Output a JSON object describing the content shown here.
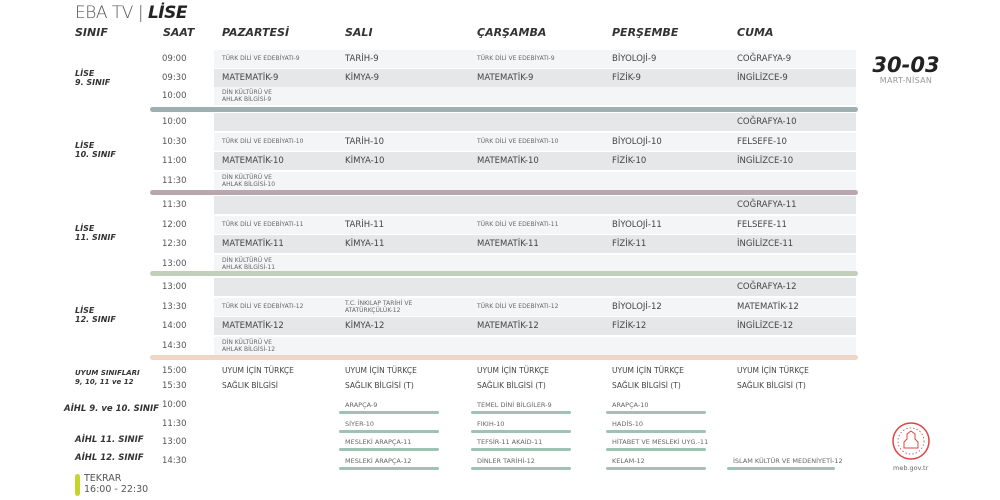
{
  "header": {
    "brand": "EBA TV |",
    "title": "LİSE"
  },
  "columns": {
    "class": "SINIF",
    "time": "SAAT",
    "days": [
      "PAZARTESİ",
      "SALI",
      "ÇARŞAMBA",
      "PERŞEMBE",
      "CUMA"
    ]
  },
  "date": {
    "day": "30-03",
    "month": "MART-NİSAN"
  },
  "colors": {
    "sep9": "#9fb0b3",
    "sep10": "#b9a7ae",
    "sep11": "#c2d0bb",
    "sep12": "#f1d6c7",
    "aihl_underline": "#9cc3b3",
    "tekrar_bar": "#c8d42e"
  },
  "blocks": [
    {
      "label": "LİSE\n9. SINIF",
      "rows": [
        {
          "time": "09:00",
          "cells": [
            "TÜRK DİLİ VE EDEBİYATI-9",
            "TARİH-9",
            "TÜRK DİLİ VE EDEBİYATI-9",
            "BİYOLOJİ-9",
            "COĞRAFYA-9"
          ]
        },
        {
          "time": "09:30",
          "cells": [
            "MATEMATİK-9",
            "KİMYA-9",
            "MATEMATİK-9",
            "FİZİK-9",
            "İNGİLİZCE-9"
          ]
        },
        {
          "time": "10:00",
          "cells": [
            "DİN KÜLTÜRÜ VE\nAHLAK BİLGİSİ-9",
            "",
            "",
            "",
            ""
          ]
        }
      ]
    },
    {
      "label": "LİSE\n10. SINIF",
      "rows": [
        {
          "time": "10:00",
          "cells": [
            "",
            "",
            "",
            "",
            "COĞRAFYA-10"
          ]
        },
        {
          "time": "10:30",
          "cells": [
            "TÜRK DİLİ VE EDEBİYATI-10",
            "TARİH-10",
            "TÜRK DİLİ VE EDEBİYATI-10",
            "BİYOLOJİ-10",
            "FELSEFE-10"
          ]
        },
        {
          "time": "11:00",
          "cells": [
            "MATEMATİK-10",
            "KİMYA-10",
            "MATEMATİK-10",
            "FİZİK-10",
            "İNGİLİZCE-10"
          ]
        },
        {
          "time": "11:30",
          "cells": [
            "DİN KÜLTÜRÜ VE\nAHLAK BİLGİSİ-10",
            "",
            "",
            "",
            ""
          ]
        }
      ]
    },
    {
      "label": "LİSE\n11. SINIF",
      "rows": [
        {
          "time": "11:30",
          "cells": [
            "",
            "",
            "",
            "",
            "COĞRAFYA-11"
          ]
        },
        {
          "time": "12:00",
          "cells": [
            "TÜRK DİLİ VE EDEBİYATI-11",
            "TARİH-11",
            "TÜRK DİLİ VE EDEBİYATI-11",
            "BİYOLOJİ-11",
            "FELSEFE-11"
          ]
        },
        {
          "time": "12:30",
          "cells": [
            "MATEMATİK-11",
            "KİMYA-11",
            "MATEMATİK-11",
            "FİZİK-11",
            "İNGİLİZCE-11"
          ]
        },
        {
          "time": "13:00",
          "cells": [
            "DİN KÜLTÜRÜ VE\nAHLAK BİLGİSİ-11",
            "",
            "",
            "",
            ""
          ]
        }
      ]
    },
    {
      "label": "LİSE\n12. SINIF",
      "rows": [
        {
          "time": "13:00",
          "cells": [
            "",
            "",
            "",
            "",
            "COĞRAFYA-12"
          ]
        },
        {
          "time": "13:30",
          "cells": [
            "TÜRK DİLİ VE EDEBİYATI-12",
            "T.C. İNKILAP TARİHİ VE\nATATÜRKÇÜLÜK-12",
            "TÜRK DİLİ VE EDEBİYATI-12",
            "BİYOLOJİ-12",
            "MATEMATİK-12"
          ]
        },
        {
          "time": "14:00",
          "cells": [
            "MATEMATİK-12",
            "KİMYA-12",
            "MATEMATİK-12",
            "FİZİK-12",
            "İNGİLİZCE-12"
          ]
        },
        {
          "time": "14:30",
          "cells": [
            "DİN KÜLTÜRÜ VE\nAHLAK BİLGİSİ-12",
            "",
            "",
            "",
            ""
          ]
        }
      ]
    }
  ],
  "uyum": {
    "label": "UYUM SINIFLARI\n9, 10, 11 ve 12",
    "rows": [
      {
        "time": "15:00",
        "cells": [
          "UYUM İÇİN TÜRKÇE",
          "UYUM İÇİN TÜRKÇE",
          "UYUM İÇİN TÜRKÇE",
          "UYUM İÇİN TÜRKÇE",
          "UYUM İÇİN TÜRKÇE"
        ]
      },
      {
        "time": "15:30",
        "cells": [
          "SAĞLIK BİLGİSİ",
          "SAĞLIK BİLGİSİ (T)",
          "SAĞLIK BİLGİSİ (T)",
          "SAĞLIK BİLGİSİ (T)",
          "SAĞLIK BİLGİSİ (T)"
        ]
      }
    ]
  },
  "aihl": {
    "labels": [
      "AİHL 9. ve 10. SINIF",
      "AİHL 11. SINIF",
      "AİHL 12. SINIF"
    ],
    "rows": [
      {
        "time": "10:00",
        "cells": [
          "",
          "ARAPÇA-9",
          "TEMEL DİNİ BİLGİLER-9",
          "ARAPÇA-10",
          ""
        ]
      },
      {
        "time": "11:30",
        "cells": [
          "",
          "SİYER-10",
          "FIKIH-10",
          "HADİS-10",
          ""
        ]
      },
      {
        "time": "13:00",
        "cells": [
          "",
          "MESLEKİ ARAPÇA-11",
          "TEFSİR-11  AKAİD-11",
          "HİTABET VE MESLEKİ UYG.-11",
          ""
        ]
      },
      {
        "time": "14:30",
        "cells": [
          "",
          "MESLEKİ ARAPÇA-12",
          "DİNLER TARİHİ-12",
          "KELAM-12",
          "İSLAM KÜLTÜR VE MEDENİYETİ-12"
        ]
      }
    ]
  },
  "tekrar": {
    "label": "TEKRAR",
    "time": "16:00 - 22:30"
  },
  "footer": {
    "site": "meb.gov.tr",
    "logo": "meb-seal"
  }
}
